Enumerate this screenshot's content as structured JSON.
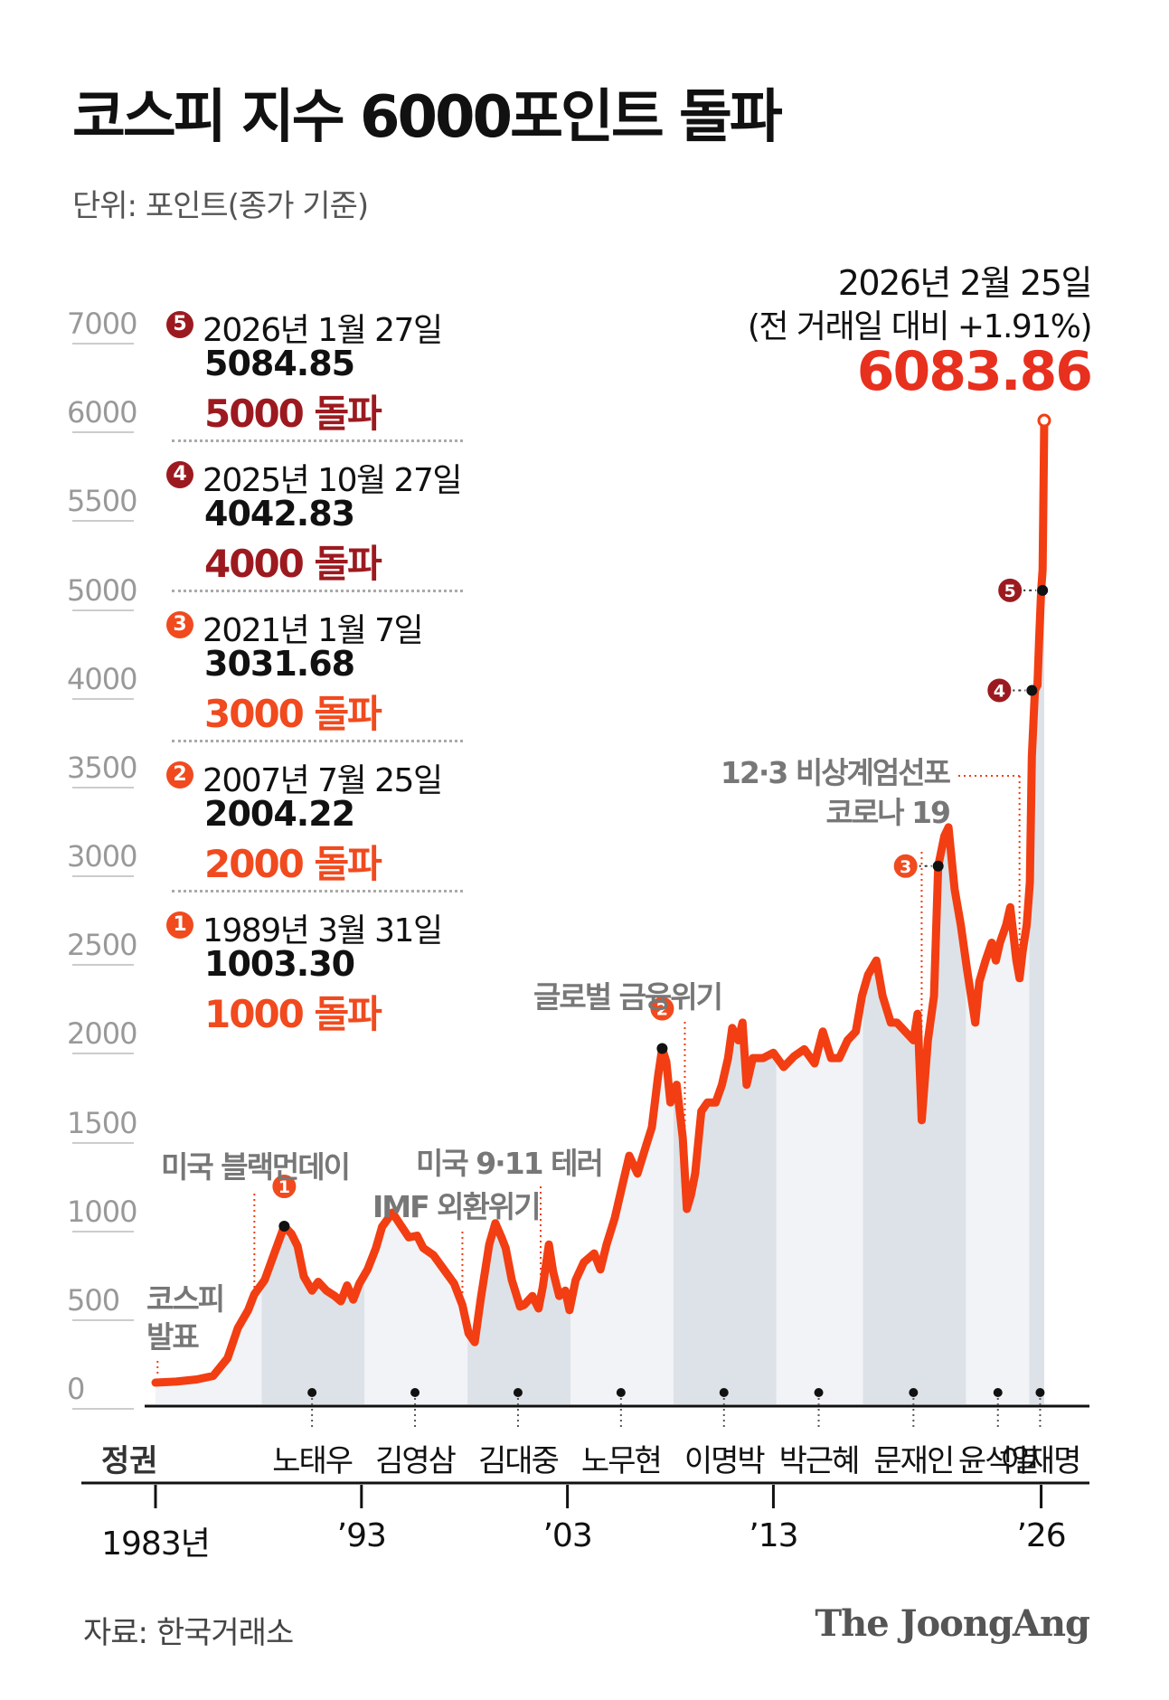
{
  "title": "코스피 지수 6000포인트 돌파",
  "unit": "단위: 포인트(종가 기준)",
  "source": "자료: 한국거래소",
  "brand": "The JoongAng",
  "colors": {
    "line": "#f23e12",
    "accent_red": "#e8301e",
    "dark_red": "#9c1a1f",
    "shade_dark": "#dde2e8",
    "shade_light": "#f1f3f6"
  },
  "latest": {
    "date": "2026년 2월 25일",
    "change": "(전 거래일 대비 +1.91%)",
    "value": "6083.86"
  },
  "milestones": [
    {
      "num": "5",
      "date": "2026년 1월 27일",
      "value": "5084.85",
      "label": "5000 돌파",
      "color": "#9c1a1f"
    },
    {
      "num": "4",
      "date": "2025년 10월 27일",
      "value": "4042.83",
      "label": "4000 돌파",
      "color": "#9c1a1f"
    },
    {
      "num": "3",
      "date": "2021년 1월 7일",
      "value": "3031.68",
      "label": "3000 돌파",
      "color": "#f04a1e"
    },
    {
      "num": "2",
      "date": "2007년 7월 25일",
      "value": "2004.22",
      "label": "2000 돌파",
      "color": "#f04a1e"
    },
    {
      "num": "1",
      "date": "1989년 3월 31일",
      "value": "1003.30",
      "label": "1000 돌파",
      "color": "#f04a1e"
    }
  ],
  "era_header": "정권",
  "eras": [
    {
      "name": "노태우",
      "start": 1988.15,
      "end": 1993.15,
      "dot": 1990.6
    },
    {
      "name": "김영삼",
      "start": 1993.15,
      "end": 1998.15,
      "dot": 1995.6
    },
    {
      "name": "김대중",
      "start": 1998.15,
      "end": 2003.15,
      "dot": 2000.6
    },
    {
      "name": "노무현",
      "start": 2003.15,
      "end": 2008.15,
      "dot": 2005.6
    },
    {
      "name": "이명박",
      "start": 2008.15,
      "end": 2013.15,
      "dot": 2010.6
    },
    {
      "name": "박근혜",
      "start": 2013.15,
      "end": 2017.35,
      "dot": 2015.2
    },
    {
      "name": "문재인",
      "start": 2017.35,
      "end": 2022.35,
      "dot": 2019.8
    },
    {
      "name": "윤석열",
      "start": 2022.35,
      "end": 2025.42,
      "dot": 2023.9
    },
    {
      "name": "이재명",
      "start": 2025.42,
      "end": 2026.15,
      "dot": 2025.95
    }
  ],
  "year_labels": [
    {
      "x": 1983,
      "text": "1983년"
    },
    {
      "x": 1993,
      "text": "’93"
    },
    {
      "x": 2003,
      "text": "’03"
    },
    {
      "x": 2013,
      "text": "’13"
    },
    {
      "x": 2026,
      "text": "’26"
    }
  ],
  "chart_data": {
    "type": "line",
    "title": "코스피 지수 6000포인트 돌파",
    "ylabel": "단위: 포인트(종가 기준)",
    "xlim": [
      1983,
      2026.15
    ],
    "ylim": [
      0,
      7000
    ],
    "yticks": [
      0,
      500,
      1000,
      1500,
      2000,
      2500,
      3000,
      3500,
      4000,
      5000,
      5500,
      6000,
      7000
    ],
    "series": [
      {
        "x": [
          1983.0,
          1984.0,
          1985.0,
          1985.8,
          1986.5,
          1987.0,
          1987.5,
          1987.8,
          1988.3,
          1988.8,
          1989.25,
          1989.6,
          1989.9,
          1990.2,
          1990.6,
          1990.9,
          1991.3,
          1991.7,
          1992.0,
          1992.3,
          1992.6,
          1992.9,
          1993.3,
          1993.7,
          1994.0,
          1994.5,
          1994.9,
          1995.3,
          1995.7,
          1996.0,
          1996.5,
          1997.0,
          1997.5,
          1997.9,
          1998.2,
          1998.5,
          1998.8,
          1999.2,
          1999.5,
          1999.8,
          2000.0,
          2000.3,
          2000.7,
          2000.9,
          2001.3,
          2001.6,
          2001.8,
          2002.1,
          2002.3,
          2002.6,
          2002.9,
          2003.1,
          2003.4,
          2003.8,
          2004.3,
          2004.6,
          2004.9,
          2005.3,
          2005.7,
          2006.0,
          2006.4,
          2006.8,
          2007.1,
          2007.4,
          2007.6,
          2007.8,
          2008.0,
          2008.3,
          2008.6,
          2008.8,
          2009.0,
          2009.2,
          2009.5,
          2009.8,
          2010.2,
          2010.5,
          2010.8,
          2011.0,
          2011.3,
          2011.5,
          2011.7,
          2012.0,
          2012.5,
          2013.0,
          2013.5,
          2014.0,
          2014.5,
          2015.0,
          2015.4,
          2015.8,
          2016.2,
          2016.6,
          2017.0,
          2017.3,
          2017.6,
          2018.0,
          2018.3,
          2018.7,
          2019.0,
          2019.4,
          2019.8,
          2020.0,
          2020.2,
          2020.5,
          2020.8,
          2021.0,
          2021.3,
          2021.5,
          2021.8,
          2022.1,
          2022.4,
          2022.8,
          2023.0,
          2023.3,
          2023.6,
          2023.8,
          2024.0,
          2024.3,
          2024.5,
          2024.8,
          2024.95,
          2025.1,
          2025.3,
          2025.45,
          2025.55,
          2025.7,
          2025.82,
          2025.9,
          2026.0,
          2026.07,
          2026.12,
          2026.15
        ],
        "y": [
          122,
          128,
          140,
          160,
          260,
          430,
          530,
          620,
          700,
          860,
          1003,
          960,
          890,
          720,
          640,
          690,
          640,
          610,
          580,
          670,
          590,
          680,
          760,
          880,
          1000,
          1080,
          1010,
          940,
          950,
          880,
          840,
          760,
          680,
          560,
          400,
          350,
          600,
          900,
          1020,
          940,
          880,
          700,
          550,
          560,
          610,
          540,
          660,
          900,
          750,
          610,
          640,
          530,
          700,
          800,
          850,
          760,
          900,
          1050,
          1250,
          1400,
          1300,
          1450,
          1560,
          1850,
          2004,
          1930,
          1700,
          1800,
          1500,
          1100,
          1180,
          1300,
          1650,
          1700,
          1700,
          1800,
          1950,
          2120,
          2050,
          2150,
          1800,
          1950,
          1950,
          1980,
          1900,
          1960,
          2000,
          1920,
          2100,
          1950,
          1950,
          2050,
          2100,
          2300,
          2420,
          2500,
          2300,
          2150,
          2150,
          2100,
          2050,
          2200,
          1600,
          2050,
          2300,
          3031,
          3200,
          3250,
          2900,
          2700,
          2450,
          2150,
          2380,
          2500,
          2600,
          2500,
          2600,
          2700,
          2800,
          2500,
          2400,
          2550,
          2700,
          2940,
          3650,
          4043,
          4100,
          4600,
          5084,
          5200,
          5700,
          6083
        ]
      }
    ],
    "annotations": [
      {
        "x": 1983.1,
        "text": "코스피\n발표"
      },
      {
        "x": 1987.8,
        "text": "미국 블랙먼데이"
      },
      {
        "x": 1997.9,
        "text": "IMF 외환위기"
      },
      {
        "x": 2001.7,
        "text": "미국 9·11 테러"
      },
      {
        "x": 2008.7,
        "text": "글로벌 금융위기"
      },
      {
        "x": 2020.2,
        "text": "코로나 19"
      },
      {
        "x": 2024.95,
        "text": "12·3 비상계엄선포"
      }
    ]
  }
}
